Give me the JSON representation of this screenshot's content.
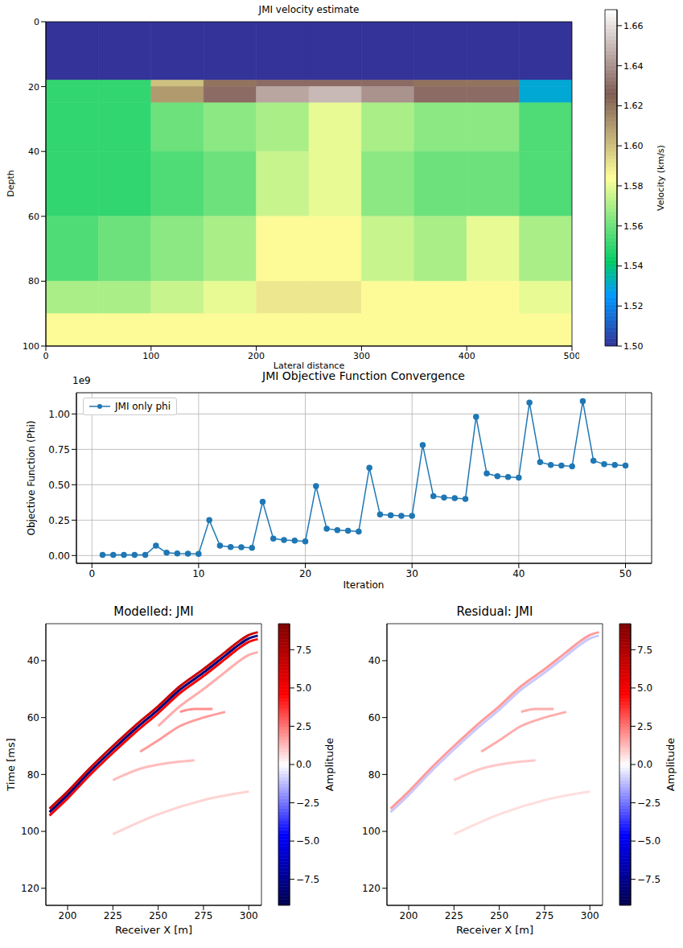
{
  "chart_data": [
    {
      "type": "heatmap",
      "title": "JMI velocity estimate",
      "x_label": "Lateral distance",
      "y_label": "Depth",
      "x_edges": [
        0,
        50,
        100,
        150,
        200,
        250,
        300,
        350,
        400,
        450,
        500
      ],
      "y_edges": [
        0,
        18,
        20,
        25,
        40,
        60,
        80,
        90,
        100
      ],
      "cells": [
        [
          1.5,
          1.5,
          1.5,
          1.5,
          1.5,
          1.5,
          1.5,
          1.5,
          1.5,
          1.5
        ],
        [
          1.55,
          1.55,
          1.6,
          1.62,
          1.63,
          1.63,
          1.63,
          1.62,
          1.62,
          1.53
        ],
        [
          1.55,
          1.55,
          1.61,
          1.63,
          1.645,
          1.65,
          1.64,
          1.63,
          1.63,
          1.53
        ],
        [
          1.55,
          1.55,
          1.56,
          1.565,
          1.57,
          1.58,
          1.57,
          1.565,
          1.565,
          1.555
        ],
        [
          1.55,
          1.55,
          1.555,
          1.56,
          1.575,
          1.58,
          1.565,
          1.56,
          1.56,
          1.555
        ],
        [
          1.555,
          1.56,
          1.565,
          1.57,
          1.585,
          1.585,
          1.575,
          1.57,
          1.58,
          1.57
        ],
        [
          1.57,
          1.57,
          1.575,
          1.58,
          1.59,
          1.59,
          1.585,
          1.585,
          1.585,
          1.58
        ],
        [
          1.585,
          1.585,
          1.585,
          1.585,
          1.585,
          1.585,
          1.585,
          1.585,
          1.585,
          1.585
        ]
      ],
      "xlim": [
        0,
        500
      ],
      "ylim": [
        0,
        100
      ],
      "xticks": [
        0,
        100,
        200,
        300,
        400,
        500
      ],
      "yticks": [
        0,
        20,
        40,
        60,
        80,
        100
      ],
      "colorbar": {
        "label": "Velocity (km/s)",
        "lim": [
          1.5,
          1.668
        ],
        "ticks": [
          {
            "value": 1.5,
            "label": "1.50"
          },
          1.52,
          1.54,
          1.56,
          1.58,
          {
            "value": 1.6,
            "label": "1.60"
          },
          1.62,
          1.64,
          1.66
        ]
      }
    },
    {
      "type": "line",
      "title": "JMI Objective Function Convergence",
      "x_label": "Iteration",
      "y_label": "Objective Function (Phi)",
      "y_offset_text": "1e9",
      "x": [
        1,
        2,
        3,
        4,
        5,
        6,
        7,
        8,
        9,
        10,
        11,
        12,
        13,
        14,
        15,
        16,
        17,
        18,
        19,
        20,
        21,
        22,
        23,
        24,
        25,
        26,
        27,
        28,
        29,
        30,
        31,
        32,
        33,
        34,
        35,
        36,
        37,
        38,
        39,
        40,
        41,
        42,
        43,
        44,
        45,
        46,
        47,
        48,
        49,
        50
      ],
      "series": [
        {
          "name": "JMI only phi",
          "color": "#1f77b4",
          "marker": "o",
          "values": [
            0.005,
            0.005,
            0.005,
            0.005,
            0.005,
            0.07,
            0.02,
            0.015,
            0.013,
            0.012,
            0.25,
            0.07,
            0.06,
            0.058,
            0.055,
            0.38,
            0.12,
            0.11,
            0.105,
            0.1,
            0.49,
            0.19,
            0.18,
            0.175,
            0.17,
            0.62,
            0.29,
            0.285,
            0.28,
            0.28,
            0.78,
            0.42,
            0.41,
            0.405,
            0.4,
            0.98,
            0.58,
            0.56,
            0.555,
            0.55,
            1.08,
            0.66,
            0.64,
            0.635,
            0.63,
            1.09,
            0.67,
            0.645,
            0.64,
            0.635
          ]
        }
      ],
      "xlim": [
        -1.45,
        52.45
      ],
      "ylim": [
        -0.055,
        1.15
      ],
      "xticks": [
        0,
        10,
        20,
        30,
        40,
        50
      ],
      "yticks": [
        {
          "value": 0,
          "label": "0.00"
        },
        0.25,
        {
          "value": 0.5,
          "label": "0.50"
        },
        0.75,
        {
          "value": 1,
          "label": "1.00"
        }
      ],
      "grid": true,
      "legend": "upper left"
    },
    {
      "type": "seismic",
      "title": "Modelled: JMI",
      "x_label": "Receiver X [m]",
      "y_label": "Time [ms]",
      "xlim": [
        188,
        307
      ],
      "ylim": [
        27,
        126
      ],
      "xticks": [
        200,
        225,
        250,
        275,
        300
      ],
      "yticks": [
        40,
        60,
        80,
        100,
        120
      ],
      "events": [
        {
          "x": [
            225,
            250,
            275,
            300
          ],
          "t": [
            101,
            94,
            89,
            86
          ],
          "amplitude": 0.8
        },
        {
          "x": [
            225,
            240,
            255,
            270
          ],
          "t": [
            82,
            78,
            76,
            75
          ],
          "amplitude": 1.2
        },
        {
          "x": [
            240,
            250,
            262,
            275,
            287
          ],
          "t": [
            72,
            68,
            63,
            60,
            58
          ],
          "amplitude": 1.8
        },
        {
          "x": [
            262,
            270,
            280
          ],
          "t": [
            58,
            57,
            57
          ],
          "amplitude": 2
        },
        {
          "x": [
            250,
            262,
            275,
            287,
            295,
            300,
            305
          ],
          "t": [
            63,
            56,
            50,
            44,
            40,
            38,
            37
          ],
          "amplitude": 1.5
        },
        {
          "x": [
            190,
            200,
            212,
            225,
            237,
            250,
            262,
            275,
            287,
            295,
            300,
            305
          ],
          "t": [
            94.4,
            88.4,
            80.4,
            72.4,
            65.4,
            58.4,
            51.4,
            45.4,
            39.4,
            35.4,
            33.4,
            32.4
          ],
          "amplitude": 5
        },
        {
          "x": [
            190,
            200,
            212,
            225,
            237,
            250,
            262,
            275,
            287,
            295,
            300,
            305
          ],
          "t": [
            93.2,
            87.2,
            79.2,
            71.2,
            64.2,
            57.2,
            50.2,
            44.2,
            38.2,
            34.2,
            32.2,
            31.2
          ],
          "amplitude": -8
        },
        {
          "x": [
            190,
            200,
            212,
            225,
            237,
            250,
            262,
            275,
            287,
            295,
            300,
            305
          ],
          "t": [
            92,
            86,
            78,
            70,
            63,
            56,
            49,
            43,
            37,
            33,
            31,
            30
          ],
          "amplitude": 6.5
        }
      ],
      "colorbar": {
        "label": "Amplitude",
        "lim": [
          -9.2,
          9.2
        ],
        "ticks": [
          {
            "value": -7.5,
            "label": "−7.5"
          },
          {
            "value": -5,
            "label": "−5.0"
          },
          {
            "value": -2.5,
            "label": "−2.5"
          },
          {
            "value": 0,
            "label": "0.0"
          },
          2.5,
          {
            "value": 5,
            "label": "5.0"
          },
          7.5
        ]
      }
    },
    {
      "type": "seismic",
      "title": "Residual: JMI",
      "x_label": "Receiver X [m]",
      "xlim": [
        188,
        307
      ],
      "ylim": [
        27,
        126
      ],
      "xticks": [
        200,
        225,
        250,
        275,
        300
      ],
      "yticks": [
        40,
        60,
        80,
        100,
        120
      ],
      "events": [
        {
          "x": [
            225,
            250,
            275,
            300
          ],
          "t": [
            101,
            94,
            89,
            86
          ],
          "amplitude": 0.6
        },
        {
          "x": [
            225,
            240,
            255,
            270
          ],
          "t": [
            82,
            78,
            76,
            75
          ],
          "amplitude": 1
        },
        {
          "x": [
            240,
            250,
            262,
            275,
            287
          ],
          "t": [
            72,
            68,
            63,
            60,
            58
          ],
          "amplitude": 1.5
        },
        {
          "x": [
            262,
            270,
            280
          ],
          "t": [
            58,
            57,
            57
          ],
          "amplitude": 1.5
        },
        {
          "x": [
            190,
            200,
            212,
            225,
            237,
            250,
            262,
            275,
            287,
            295,
            300,
            305
          ],
          "t": [
            93.2,
            87.2,
            79.2,
            71.2,
            64.2,
            57.2,
            50.2,
            44.2,
            38.2,
            34.2,
            32.2,
            31.2
          ],
          "amplitude": -1
        },
        {
          "x": [
            190,
            200,
            212,
            225,
            237,
            250,
            262,
            275,
            287,
            295,
            300,
            305
          ],
          "t": [
            92,
            86,
            78,
            70,
            63,
            56,
            49,
            43,
            37,
            33,
            31,
            30
          ],
          "amplitude": 1.8
        }
      ],
      "colorbar": {
        "label": "Amplitude",
        "lim": [
          -9.2,
          9.2
        ],
        "ticks": [
          {
            "value": -7.5,
            "label": "−7.5"
          },
          {
            "value": -5,
            "label": "−5.0"
          },
          {
            "value": -2.5,
            "label": "−2.5"
          },
          {
            "value": 0,
            "label": "0.0"
          },
          2.5,
          {
            "value": 5,
            "label": "5.0"
          },
          7.5
        ]
      }
    }
  ]
}
